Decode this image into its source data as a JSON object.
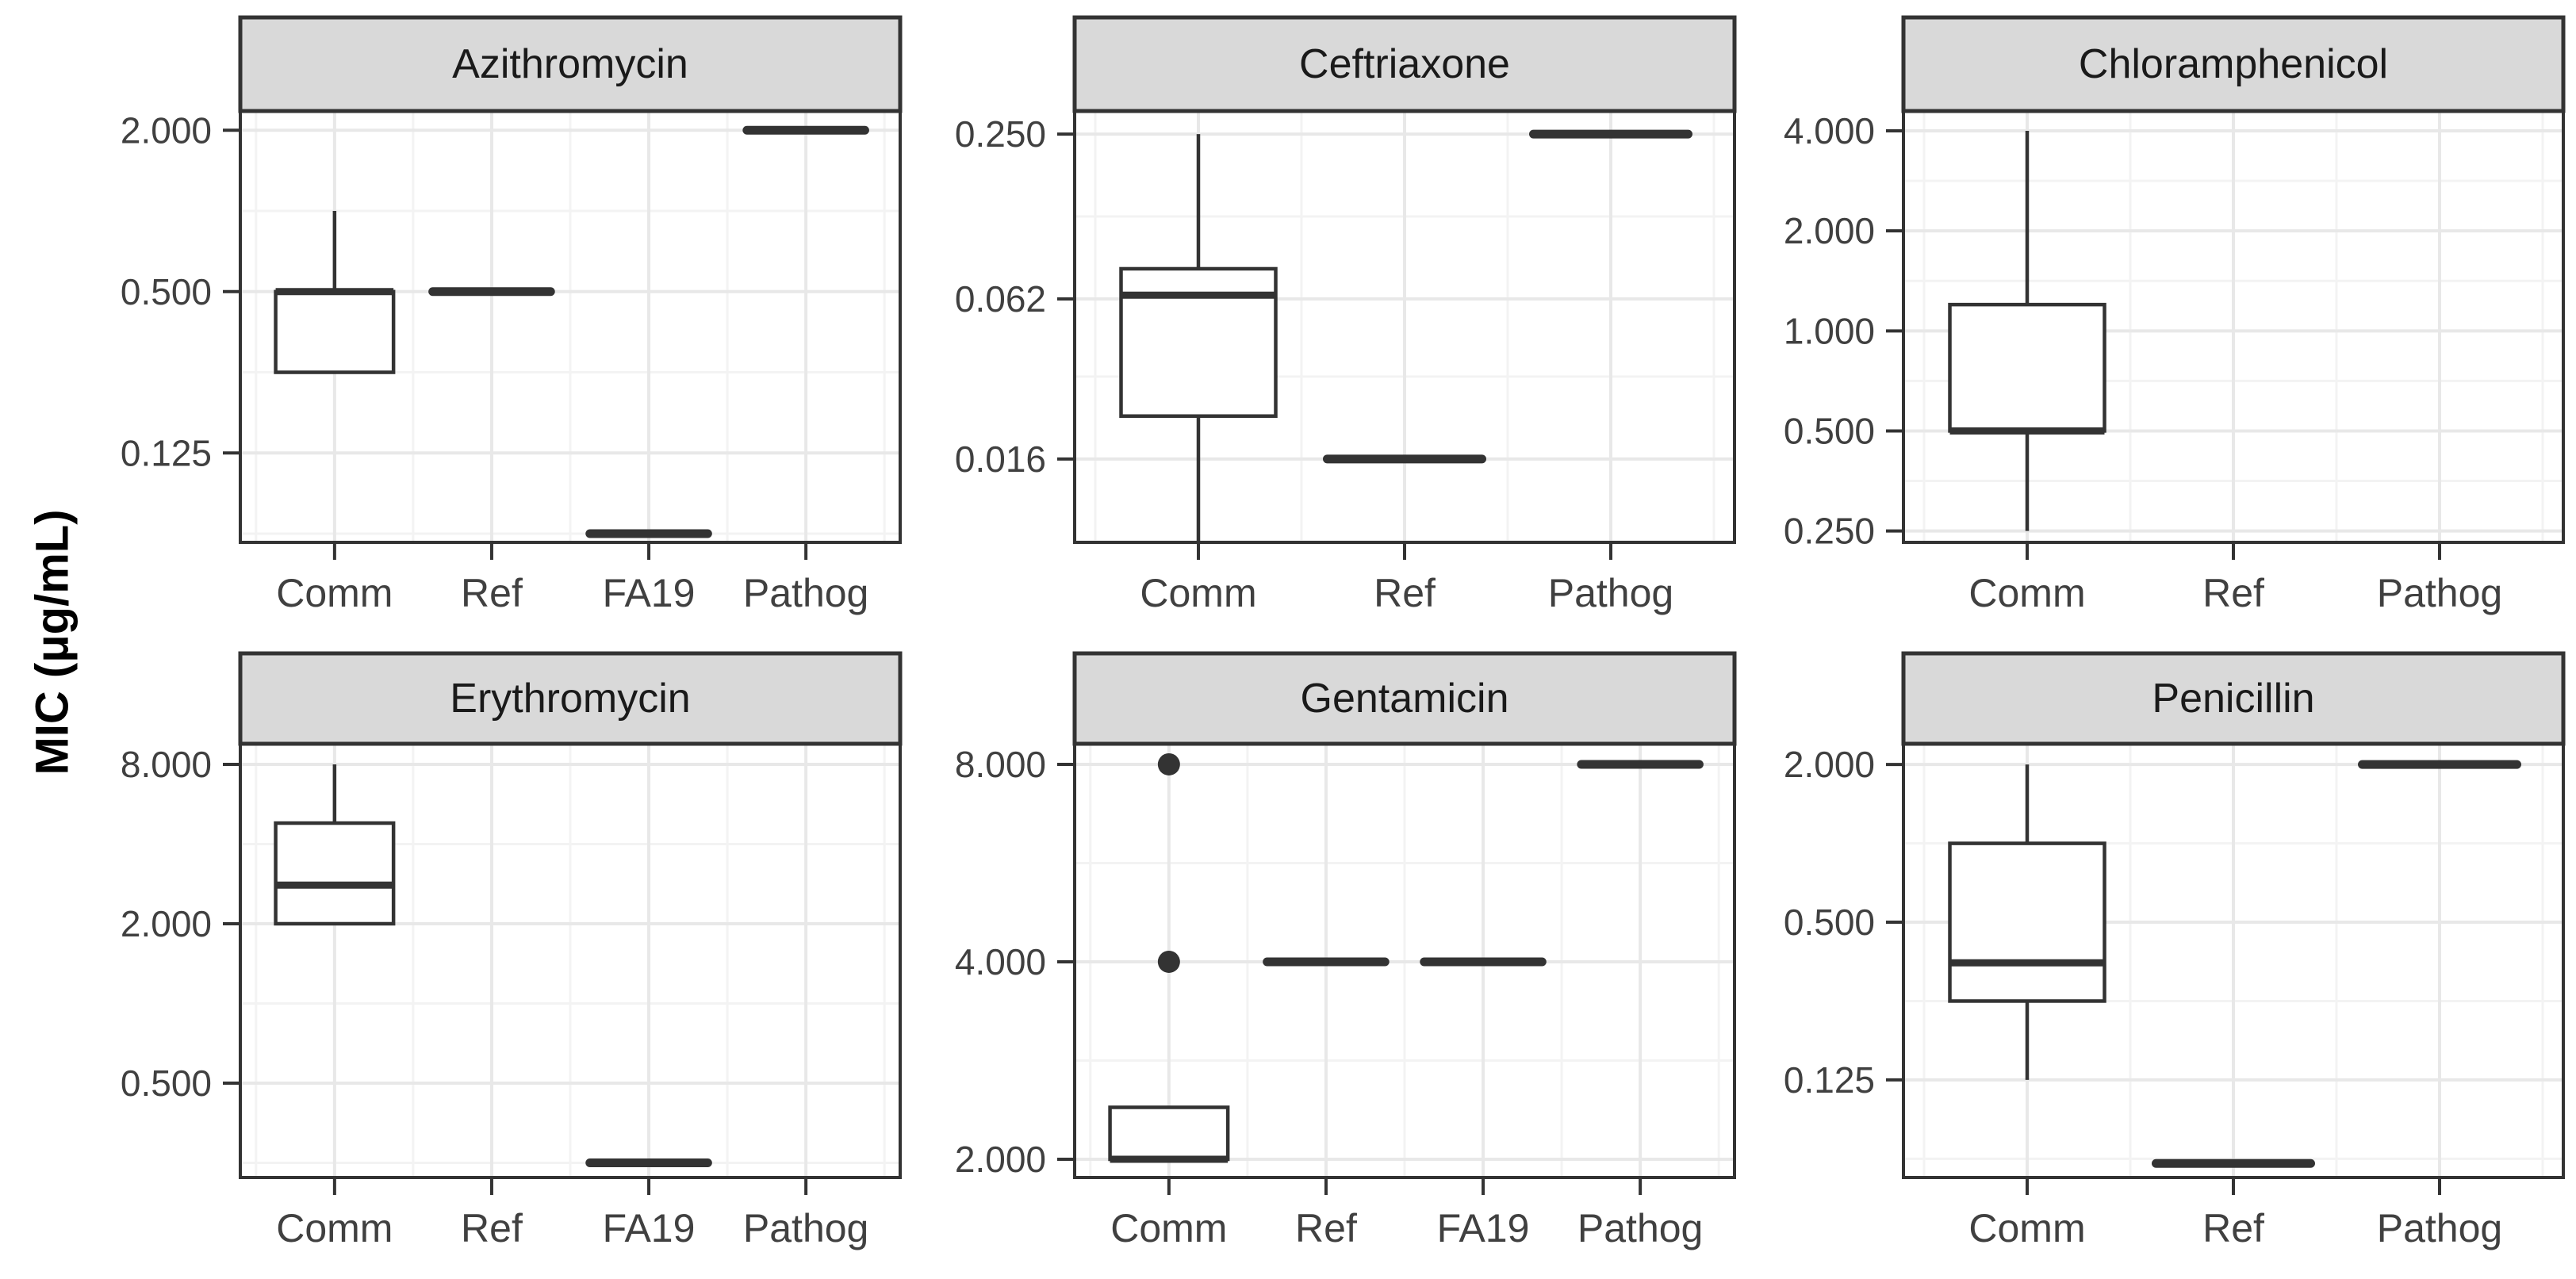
{
  "chart_data": {
    "type": "boxplot",
    "log_scale": true,
    "y_axis_title": "MIC (μg/mL)",
    "facet_rows": 2,
    "facet_cols": 3,
    "grid": "on",
    "colors": {
      "strip_bg": "#d9d9d9",
      "strip_border": "#333333",
      "panel_border": "#333333",
      "box_stroke": "#333333",
      "grid_major": "#e8e8e8",
      "grid_minor": "#f3f3f3",
      "tick_text": "#404040",
      "axis_title_text": "#000000",
      "background": "#ffffff"
    },
    "panels": [
      {
        "title": "Azithromycin",
        "row": 0,
        "col": 0,
        "y_domain": [
          0.058,
          2.36
        ],
        "y_ticks": [
          {
            "label": "2.000",
            "value": 2.0
          },
          {
            "label": "0.500",
            "value": 0.5
          },
          {
            "label": "0.125",
            "value": 0.125
          }
        ],
        "categories": [
          {
            "label": "Comm",
            "plot": "box",
            "stats": {
              "min": 0.25,
              "q1": 0.25,
              "median": 0.5,
              "q3": 0.5,
              "max": 1.0
            }
          },
          {
            "label": "Ref",
            "plot": "line",
            "value": 0.5
          },
          {
            "label": "FA19",
            "plot": "line",
            "value": 0.0625
          },
          {
            "label": "Pathog",
            "plot": "line",
            "value": 2.0
          }
        ]
      },
      {
        "title": "Ceftriaxone",
        "row": 0,
        "col": 1,
        "y_domain": [
          0.0079,
          0.304
        ],
        "y_ticks": [
          {
            "label": "0.250",
            "value": 0.25
          },
          {
            "label": "0.062",
            "value": 0.062
          },
          {
            "label": "0.016",
            "value": 0.016
          }
        ],
        "categories": [
          {
            "label": "Comm",
            "plot": "box",
            "stats": {
              "min": 0.008,
              "q1": 0.023,
              "median": 0.064,
              "q3": 0.08,
              "max": 0.25
            }
          },
          {
            "label": "Ref",
            "plot": "line",
            "value": 0.016
          },
          {
            "label": "Pathog",
            "plot": "line",
            "value": 0.25
          }
        ]
      },
      {
        "title": "Chloramphenicol",
        "row": 0,
        "col": 2,
        "y_domain": [
          0.231,
          4.59
        ],
        "y_ticks": [
          {
            "label": "4.000",
            "value": 4.0
          },
          {
            "label": "2.000",
            "value": 2.0
          },
          {
            "label": "1.000",
            "value": 1.0
          },
          {
            "label": "0.500",
            "value": 0.5
          },
          {
            "label": "0.250",
            "value": 0.25
          }
        ],
        "categories": [
          {
            "label": "Comm",
            "plot": "box",
            "stats": {
              "min": 0.25,
              "q1": 0.5,
              "median": 0.5,
              "q3": 1.2,
              "max": 4.0
            }
          },
          {
            "label": "Ref",
            "plot": "none"
          },
          {
            "label": "Pathog",
            "plot": "none"
          }
        ]
      },
      {
        "title": "Erythromycin",
        "row": 1,
        "col": 0,
        "y_domain": [
          0.22,
          9.57
        ],
        "y_ticks": [
          {
            "label": "8.000",
            "value": 8.0
          },
          {
            "label": "2.000",
            "value": 2.0
          },
          {
            "label": "0.500",
            "value": 0.5
          }
        ],
        "categories": [
          {
            "label": "Comm",
            "plot": "box",
            "stats": {
              "min": 2.0,
              "q1": 2.0,
              "median": 2.8,
              "q3": 4.8,
              "max": 8.0
            }
          },
          {
            "label": "Ref",
            "plot": "none"
          },
          {
            "label": "FA19",
            "plot": "line",
            "value": 0.25
          },
          {
            "label": "Pathog",
            "plot": "none"
          }
        ]
      },
      {
        "title": "Gentamicin",
        "row": 1,
        "col": 1,
        "y_domain": [
          1.876,
          8.6
        ],
        "y_ticks": [
          {
            "label": "8.000",
            "value": 8.0
          },
          {
            "label": "4.000",
            "value": 4.0
          },
          {
            "label": "2.000",
            "value": 2.0
          }
        ],
        "categories": [
          {
            "label": "Comm",
            "plot": "box",
            "stats": {
              "min": 2.0,
              "q1": 2.0,
              "median": 2.0,
              "q3": 2.4,
              "max": 2.4
            },
            "outliers": [
              4.0,
              8.0
            ]
          },
          {
            "label": "Ref",
            "plot": "line",
            "value": 4.0
          },
          {
            "label": "FA19",
            "plot": "line",
            "value": 4.0
          },
          {
            "label": "Pathog",
            "plot": "line",
            "value": 8.0
          }
        ]
      },
      {
        "title": "Penicillin",
        "row": 1,
        "col": 2,
        "y_domain": [
          0.053,
          2.4
        ],
        "y_ticks": [
          {
            "label": "2.000",
            "value": 2.0
          },
          {
            "label": "0.500",
            "value": 0.5
          },
          {
            "label": "0.125",
            "value": 0.125
          }
        ],
        "categories": [
          {
            "label": "Comm",
            "plot": "box",
            "stats": {
              "min": 0.125,
              "q1": 0.25,
              "median": 0.35,
              "q3": 1.0,
              "max": 2.0
            }
          },
          {
            "label": "Ref",
            "plot": "line",
            "value": 0.06
          },
          {
            "label": "Pathog",
            "plot": "line",
            "value": 2.0
          }
        ]
      }
    ]
  }
}
